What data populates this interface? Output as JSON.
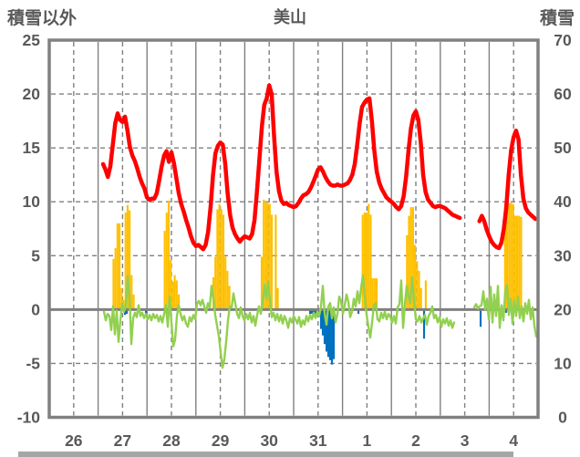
{
  "header": {
    "title": "美山",
    "left_corner_label": "積雪以外",
    "right_corner_label": "積雪"
  },
  "colors": {
    "red_line": "#ff0000",
    "green_line": "#92d050",
    "yellow_bars": "#ffc000",
    "blue_bars": "#0070c0",
    "grid": "#808080",
    "text": "#595959"
  },
  "chart_data": {
    "type": "line",
    "title": "美山",
    "x_axis": {
      "tick_labels": [
        "26",
        "27",
        "28",
        "29",
        "30",
        "31",
        "1",
        "2",
        "3",
        "4"
      ],
      "days": 10
    },
    "left_axis": {
      "label": "積雪以外",
      "min": -10,
      "max": 25,
      "ticks": [
        25,
        20,
        15,
        10,
        5,
        0,
        -5,
        -10
      ]
    },
    "right_axis": {
      "label": "積雪",
      "min": 0,
      "max": 70,
      "ticks": [
        70,
        60,
        50,
        40,
        30,
        20,
        10,
        0
      ]
    },
    "series": [
      {
        "id": "red-line",
        "type": "line",
        "axis": "left",
        "color": "#ff0000",
        "stroke_width": 4.5,
        "t_start": 1.1,
        "t_step": 0.05,
        "values": [
          13.5,
          13.0,
          12.3,
          13.3,
          15.3,
          17.3,
          18.2,
          17.6,
          17.4,
          17.9,
          16.6,
          15.1,
          14.3,
          13.8,
          13.1,
          12.3,
          11.7,
          11.2,
          10.4,
          10.2,
          10.3,
          10.3,
          10.8,
          12.0,
          13.3,
          14.3,
          14.7,
          13.7,
          14.6,
          13.6,
          12.2,
          10.8,
          9.8,
          9.1,
          8.3,
          7.6,
          6.8,
          6.2,
          5.9,
          6.0,
          5.8,
          5.6,
          6.0,
          7.2,
          9.5,
          12.5,
          14.5,
          15.2,
          15.5,
          15.3,
          13.5,
          10.8,
          8.8,
          7.6,
          7.0,
          6.6,
          6.3,
          6.6,
          6.8,
          6.7,
          6.6,
          7.0,
          8.3,
          11.0,
          14.0,
          17.0,
          19.0,
          19.6,
          20.8,
          20.0,
          16.0,
          12.8,
          11.0,
          10.1,
          9.8,
          9.9,
          9.7,
          9.6,
          9.5,
          9.6,
          9.9,
          10.3,
          10.6,
          10.7,
          10.9,
          11.3,
          11.8,
          12.4,
          13.0,
          13.2,
          12.8,
          12.3,
          11.9,
          11.6,
          11.5,
          11.5,
          11.6,
          11.5,
          11.5,
          11.6,
          11.7,
          12.0,
          12.5,
          13.5,
          15.3,
          17.3,
          18.8,
          19.2,
          19.5,
          19.6,
          17.5,
          14.8,
          12.8,
          11.8,
          11.2,
          10.8,
          10.4,
          10.2,
          10.0,
          9.8,
          9.5,
          9.3,
          9.6,
          10.5,
          12.3,
          14.8,
          16.8,
          18.0,
          18.4,
          17.6,
          15.5,
          12.5,
          10.9,
          10.2,
          9.9,
          9.6,
          9.5,
          9.6,
          9.6,
          9.5,
          9.4,
          9.2,
          9.0,
          8.8,
          8.7,
          8.6,
          8.5,
          null,
          null,
          null,
          null,
          null,
          null,
          null,
          8.2,
          8.7,
          8.2,
          7.4,
          6.8,
          6.3,
          6.0,
          5.8,
          5.7,
          6.2,
          7.5,
          9.5,
          12.5,
          14.8,
          16.0,
          16.6,
          15.8,
          12.5,
          10.3,
          9.4,
          9.0,
          8.8,
          8.6,
          8.4
        ]
      },
      {
        "id": "green-line",
        "type": "line",
        "axis": "left",
        "color": "#92d050",
        "stroke_width": 2.4,
        "t_start": 1.1194,
        "t_step": 0.03731,
        "values": [
          -0.2,
          -1.0,
          -0.4,
          -0.6,
          -1.9,
          0.3,
          -2.3,
          -0.1,
          -3.0,
          -1.0,
          0.6,
          -0.2,
          0.4,
          3.1,
          1.2,
          -3.2,
          -0.8,
          -0.3,
          -0.7,
          0.4,
          -0.6,
          -0.3,
          -0.8,
          -0.4,
          -0.9,
          -0.5,
          -1.0,
          -0.4,
          -0.8,
          -0.5,
          -1.1,
          -0.6,
          -1.2,
          -0.4,
          0.4,
          -1.6,
          1.2,
          -1.2,
          -3.4,
          -2.8,
          -0.6,
          0.4,
          -0.4,
          -1.0,
          -0.6,
          -1.3,
          -1.6,
          -0.7,
          -1.1,
          -0.5,
          -0.9,
          0.5,
          0.8,
          0.4,
          0.9,
          0.3,
          -0.3,
          0.6,
          0.2,
          2.2,
          1.0,
          -0.5,
          -1.5,
          -2.5,
          -4.0,
          -5.4,
          -4.6,
          -3.0,
          -1.0,
          0.3,
          0.2,
          1.5,
          0.6,
          -0.4,
          -0.8,
          0.2,
          -0.6,
          -1.0,
          -0.4,
          -0.9,
          -0.3,
          -1.2,
          -0.6,
          -1.5,
          -0.5,
          0.3,
          -0.4,
          0.6,
          2.3,
          1.0,
          2.6,
          0.8,
          -0.7,
          -0.3,
          -1.0,
          -0.4,
          -1.1,
          -0.5,
          -1.3,
          -0.6,
          -1.0,
          -1.7,
          -0.8,
          -1.2,
          -0.6,
          -0.9,
          -1.3,
          -0.7,
          -1.6,
          -1.0,
          -1.4,
          -0.6,
          -1.1,
          -0.5,
          -0.9,
          -0.3,
          -0.8,
          -0.2,
          -0.6,
          0.3,
          2.2,
          -0.4,
          -1.4,
          0.3,
          0.6,
          -0.8,
          0.2,
          -1.2,
          -0.4,
          1.2,
          0.8,
          -0.4,
          0.4,
          1.4,
          0.7,
          -0.7,
          -0.2,
          1.0,
          0.3,
          1.7,
          0.6,
          2.0,
          3.2,
          1.2,
          -0.5,
          -1.6,
          -2.6,
          -1.2,
          0.4,
          0.6,
          -0.9,
          -1.1,
          -0.3,
          -0.8,
          -0.2,
          -0.9,
          -0.4,
          -0.7,
          -1.2,
          -0.6,
          -1.3,
          0.2,
          0.5,
          2.7,
          -1.7,
          0.5,
          2.2,
          1.2,
          0.6,
          3.0,
          0.8,
          -0.9,
          -1.1,
          -0.6,
          -1.2,
          -0.8,
          -0.5,
          -1.4,
          -0.6,
          -0.3,
          0.3,
          -0.8,
          -0.5,
          -1.2,
          -0.7,
          -1.6,
          -0.9,
          -1.3,
          -0.8,
          -1.5,
          -1.0,
          -1.7,
          -1.2,
          null,
          null,
          null,
          null,
          null,
          null,
          null,
          null,
          null,
          null,
          0.2,
          0.5,
          0.1,
          0.3,
          0.4,
          1.7,
          0.0,
          1.0,
          -0.9,
          2.1,
          -1.2,
          1.4,
          -0.6,
          2.2,
          -1.7,
          0.4,
          -1.0,
          1.6,
          2.3,
          -0.5,
          1.0,
          -1.3,
          0.8,
          -0.6,
          1.2,
          -0.8,
          0.3,
          -1.1,
          0.6,
          -0.4,
          0.9,
          -0.9,
          0.2,
          -1.5,
          -2.5
        ]
      },
      {
        "id": "yellow-bars",
        "type": "bar",
        "axis": "left",
        "color": "#ffc000",
        "bar_width_days": 0.04,
        "points": [
          [
            1.315,
            4.7
          ],
          [
            1.356,
            5.7
          ],
          [
            1.397,
            8.0
          ],
          [
            1.438,
            8.0
          ],
          [
            1.479,
            2.0
          ],
          [
            1.521,
            0.9
          ],
          [
            1.562,
            9.0
          ],
          [
            1.603,
            9.7
          ],
          [
            1.644,
            9.2
          ],
          [
            1.685,
            3.2
          ],
          [
            1.727,
            1.4
          ],
          [
            2.362,
            7.3
          ],
          [
            2.403,
            9.0
          ],
          [
            2.444,
            10.1
          ],
          [
            2.485,
            4.6
          ],
          [
            2.526,
            2.6
          ],
          [
            2.567,
            3.2
          ],
          [
            2.608,
            2.7
          ],
          [
            2.649,
            1.4
          ],
          [
            3.358,
            3.0
          ],
          [
            3.399,
            4.9
          ],
          [
            3.44,
            9.3
          ],
          [
            3.481,
            9.8
          ],
          [
            3.522,
            9.3
          ],
          [
            3.563,
            8.8
          ],
          [
            3.604,
            4.9
          ],
          [
            3.645,
            3.6
          ],
          [
            3.686,
            2.2
          ],
          [
            4.347,
            4.9
          ],
          [
            4.388,
            10.2
          ],
          [
            4.429,
            10.0
          ],
          [
            4.47,
            9.9
          ],
          [
            4.511,
            9.8
          ],
          [
            4.552,
            8.8
          ],
          [
            4.634,
            8.8
          ],
          [
            4.675,
            2.0
          ],
          [
            6.412,
            8.8
          ],
          [
            6.453,
            9.0
          ],
          [
            6.494,
            9.0
          ],
          [
            6.535,
            9.8
          ],
          [
            6.576,
            8.8
          ],
          [
            6.617,
            2.9
          ],
          [
            6.658,
            2.9
          ],
          [
            6.699,
            2.9
          ],
          [
            7.319,
            6.9
          ],
          [
            7.36,
            8.7
          ],
          [
            7.401,
            9.5
          ],
          [
            7.442,
            9.5
          ],
          [
            7.483,
            6.0
          ],
          [
            7.524,
            4.5
          ],
          [
            7.565,
            3.6
          ],
          [
            7.606,
            2.0
          ],
          [
            7.703,
            2.7
          ],
          [
            9.326,
            9.8
          ],
          [
            9.367,
            9.8
          ],
          [
            9.408,
            9.9
          ],
          [
            9.449,
            9.9
          ],
          [
            9.49,
            9.8
          ],
          [
            9.531,
            8.7
          ],
          [
            9.572,
            8.7
          ],
          [
            9.613,
            8.7
          ],
          [
            9.654,
            8.6
          ]
        ]
      },
      {
        "id": "blue-bars",
        "type": "bar",
        "axis": "left",
        "color": "#0070c0",
        "bar_width_days": 0.04,
        "points": [
          [
            1.549,
            -0.5
          ],
          [
            1.586,
            -0.4
          ],
          [
            1.978,
            -0.6
          ],
          [
            5.336,
            -0.4
          ],
          [
            5.373,
            -0.4
          ],
          [
            5.41,
            -0.5
          ],
          [
            5.448,
            -0.4
          ],
          [
            5.485,
            -0.5
          ],
          [
            5.522,
            -0.7
          ],
          [
            5.56,
            -1.8
          ],
          [
            5.597,
            -2.4
          ],
          [
            5.634,
            -3.2
          ],
          [
            5.672,
            -3.9
          ],
          [
            5.709,
            -4.4
          ],
          [
            5.746,
            -4.7
          ],
          [
            5.784,
            -5.1
          ],
          [
            5.821,
            -4.6
          ],
          [
            6.325,
            -0.4
          ],
          [
            7.668,
            -2.7
          ],
          [
            8.825,
            -1.6
          ],
          [
            9.347,
            -0.3
          ]
        ]
      }
    ]
  }
}
